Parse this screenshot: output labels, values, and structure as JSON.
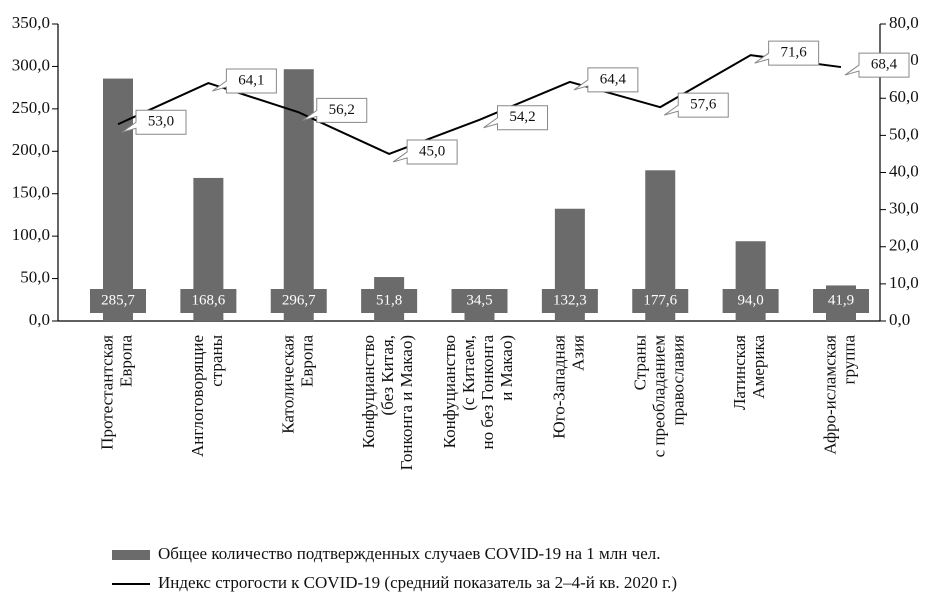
{
  "chart_data": {
    "type": "bar_line",
    "categories": [
      "Протестантская\nЕвропа",
      "Англоговорящие\nстраны",
      "Католическая\nЕвропа",
      "Конфуцианство\n(без Китая,\nГонконга и Макао)",
      "Конфуцианство\n(с Китаем,\nно без Гонконга\nи Макао)",
      "Юго-Западная\nАзия",
      "Страны\nс преобладанием\nправославия",
      "Латинская\nАмерика",
      "Афро-исламская\nгруппа"
    ],
    "series": [
      {
        "name": "Общее количество подтвержденных случаев COVID-19 на 1 млн чел.",
        "type": "bar",
        "color": "#6b6b6b",
        "values": [
          285.7,
          168.6,
          296.7,
          51.8,
          34.5,
          132.3,
          177.6,
          94.0,
          41.9
        ],
        "value_labels": [
          "285,7",
          "168,6",
          "296,7",
          "51,8",
          "34,5",
          "132,3",
          "177,6",
          "94,0",
          "41,9"
        ]
      },
      {
        "name": "Индекс строгости к COVID-19 (средний показатель за 2–4-й кв. 2020 г.)",
        "type": "line",
        "color": "#000000",
        "axis": "y2",
        "values": [
          53.0,
          64.1,
          56.2,
          45.0,
          54.2,
          64.4,
          57.6,
          71.6,
          68.4
        ],
        "value_labels": [
          "53,0",
          "64,1",
          "56,2",
          "45,0",
          "54,2",
          "64,4",
          "57,6",
          "71,6",
          "68,4"
        ]
      }
    ],
    "ylim": [
      0,
      350
    ],
    "yticks": [
      {
        "value": 0,
        "label": "0,0"
      },
      {
        "value": 50,
        "label": "50,0"
      },
      {
        "value": 100,
        "label": "100,0"
      },
      {
        "value": 150,
        "label": "150,0"
      },
      {
        "value": 200,
        "label": "200,0"
      },
      {
        "value": 250,
        "label": "250,0"
      },
      {
        "value": 300,
        "label": "300,0"
      },
      {
        "value": 350,
        "label": "350,0"
      }
    ],
    "y2lim": [
      0,
      80
    ],
    "y2ticks": [
      {
        "value": 0,
        "label": "0,0"
      },
      {
        "value": 10,
        "label": "10,0"
      },
      {
        "value": 20,
        "label": "20,0"
      },
      {
        "value": 30,
        "label": "30,0"
      },
      {
        "value": 40,
        "label": "40,0"
      },
      {
        "value": 50,
        "label": "50,0"
      },
      {
        "value": 60,
        "label": "60,0"
      },
      {
        "value": 70,
        "label": "70,0"
      },
      {
        "value": 80,
        "label": "80,0"
      }
    ],
    "legend": "bottom"
  }
}
